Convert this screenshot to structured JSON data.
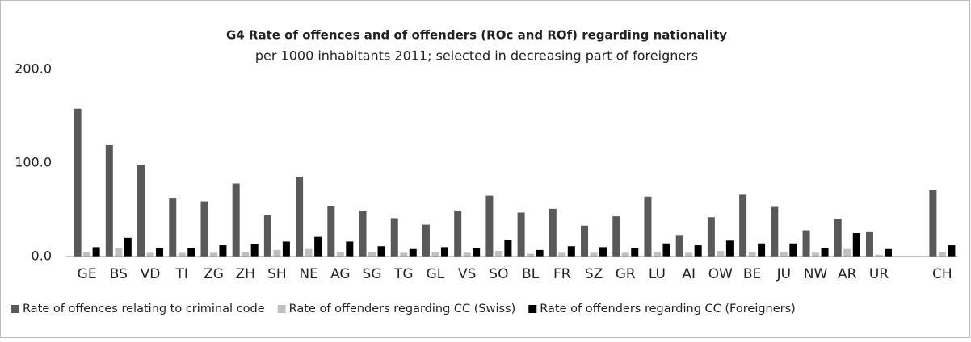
{
  "chart_data": {
    "type": "bar",
    "title": "G4 Rate of offences and of offenders (ROc and ROf) regarding nationality",
    "subtitle": "per 1000 inhabitants 2011; selected in decreasing part of foreigners",
    "categories": [
      "GE",
      "BS",
      "VD",
      "TI",
      "ZG",
      "ZH",
      "SH",
      "NE",
      "AG",
      "SG",
      "TG",
      "GL",
      "VS",
      "SO",
      "BL",
      "FR",
      "SZ",
      "GR",
      "LU",
      "AI",
      "OW",
      "BE",
      "JU",
      "NW",
      "AR",
      "UR",
      null,
      "CH"
    ],
    "series": [
      {
        "name": "Rate of offences relating to criminal code",
        "color": "#595959",
        "values": [
          158,
          119,
          98,
          62,
          59,
          78,
          44,
          85,
          54,
          49,
          41,
          34,
          49,
          65,
          47,
          51,
          33,
          43,
          64,
          23,
          42,
          66,
          53,
          28,
          40,
          26,
          null,
          71
        ]
      },
      {
        "name": "Rate of offenders regarding CC (Swiss)",
        "color": "#bfbfbf",
        "values": [
          5,
          9,
          4,
          4,
          4,
          5,
          7,
          8,
          5,
          5,
          4,
          5,
          4,
          6,
          3,
          4,
          4,
          4,
          5,
          4,
          6,
          5,
          5,
          4,
          8,
          2,
          null,
          5
        ]
      },
      {
        "name": "Rate of offenders regarding CC (Foreigners)",
        "color": "#000000",
        "values": [
          10,
          20,
          9,
          9,
          12,
          13,
          16,
          21,
          16,
          11,
          8,
          10,
          9,
          18,
          7,
          11,
          10,
          9,
          14,
          12,
          17,
          14,
          14,
          9,
          25,
          8,
          null,
          12
        ]
      }
    ],
    "ylim": [
      0,
      200
    ],
    "yticks": [
      {
        "value": 0,
        "label": "0.0"
      },
      {
        "value": 100,
        "label": "100.0"
      },
      {
        "value": 200,
        "label": "200.0"
      }
    ],
    "grid": false,
    "legend": "bottom"
  }
}
